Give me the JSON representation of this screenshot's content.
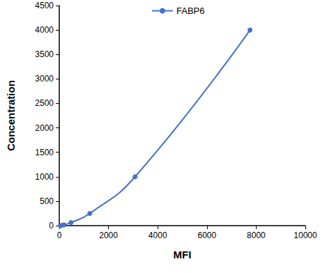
{
  "chart_data": {
    "type": "line",
    "x_label": "MFI",
    "y_label": "Concentration",
    "series": [
      {
        "name": "FABP6",
        "color": "#4472c4",
        "marker": "circle",
        "line_style": "solid",
        "x": [
          40,
          90,
          190,
          480,
          1240,
          3080,
          7750
        ],
        "values": [
          0,
          3.9,
          15.6,
          62.5,
          250,
          1000,
          4000
        ]
      }
    ],
    "xlim": [
      0,
      10000
    ],
    "xticks": [
      0,
      2000,
      4000,
      6000,
      8000,
      10000
    ],
    "ylim": [
      0,
      4500
    ],
    "yticks": [
      0,
      500,
      1000,
      1500,
      2000,
      2500,
      3000,
      3500,
      4000,
      4500
    ],
    "grid": false,
    "legend": "top"
  }
}
